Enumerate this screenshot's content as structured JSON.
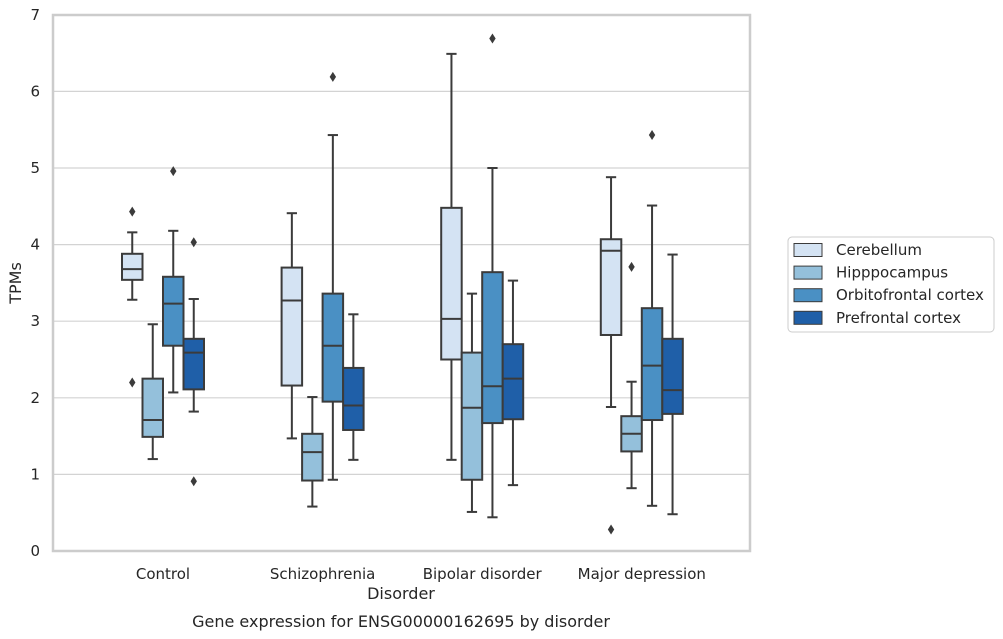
{
  "chart_data": {
    "type": "box",
    "caption": "Gene expression for ENSG00000162695 by disorder",
    "xlabel": "Disorder",
    "ylabel": "TPMs",
    "ylim": [
      0,
      7
    ],
    "yticks": [
      0,
      1,
      2,
      3,
      4,
      5,
      6,
      7
    ],
    "grid": "horizontal",
    "legend_position": "right",
    "categories": [
      "Control",
      "Schizophrenia",
      "Bipolar disorder",
      "Major depression"
    ],
    "series": [
      {
        "name": "Cerebellum",
        "color": "#d4e3f3",
        "boxes": [
          {
            "min": 3.28,
            "q1": 3.54,
            "median": 3.68,
            "q3": 3.88,
            "max": 4.16,
            "outliers": [
              4.43,
              2.2
            ]
          },
          {
            "min": 1.47,
            "q1": 2.16,
            "median": 3.27,
            "q3": 3.7,
            "max": 4.41,
            "outliers": []
          },
          {
            "min": 1.19,
            "q1": 2.5,
            "median": 3.03,
            "q3": 4.48,
            "max": 6.49,
            "outliers": []
          },
          {
            "min": 1.88,
            "q1": 2.82,
            "median": 3.92,
            "q3": 4.07,
            "max": 4.88,
            "outliers": [
              0.28
            ]
          }
        ]
      },
      {
        "name": "Hipppocampus",
        "color": "#94c0db",
        "boxes": [
          {
            "min": 1.2,
            "q1": 1.49,
            "median": 1.71,
            "q3": 2.25,
            "max": 2.96,
            "outliers": []
          },
          {
            "min": 0.58,
            "q1": 0.92,
            "median": 1.29,
            "q3": 1.53,
            "max": 2.01,
            "outliers": []
          },
          {
            "min": 0.51,
            "q1": 0.93,
            "median": 1.87,
            "q3": 2.59,
            "max": 3.36,
            "outliers": []
          },
          {
            "min": 0.82,
            "q1": 1.3,
            "median": 1.53,
            "q3": 1.76,
            "max": 2.21,
            "outliers": [
              3.71
            ]
          }
        ]
      },
      {
        "name": "Orbitofrontal cortex",
        "color": "#4a90c4",
        "boxes": [
          {
            "min": 2.07,
            "q1": 2.68,
            "median": 3.23,
            "q3": 3.58,
            "max": 4.18,
            "outliers": [
              4.96
            ]
          },
          {
            "min": 0.93,
            "q1": 1.95,
            "median": 2.68,
            "q3": 3.36,
            "max": 5.43,
            "outliers": [
              6.19
            ]
          },
          {
            "min": 0.44,
            "q1": 1.67,
            "median": 2.15,
            "q3": 3.64,
            "max": 5.0,
            "outliers": [
              6.69
            ]
          },
          {
            "min": 0.59,
            "q1": 1.71,
            "median": 2.42,
            "q3": 3.17,
            "max": 4.51,
            "outliers": [
              5.43
            ]
          }
        ]
      },
      {
        "name": "Prefrontal cortex",
        "color": "#1f5fa8",
        "boxes": [
          {
            "min": 1.82,
            "q1": 2.11,
            "median": 2.59,
            "q3": 2.77,
            "max": 3.29,
            "outliers": [
              4.03,
              0.91
            ]
          },
          {
            "min": 1.19,
            "q1": 1.58,
            "median": 1.9,
            "q3": 2.39,
            "max": 3.09,
            "outliers": []
          },
          {
            "min": 0.86,
            "q1": 1.72,
            "median": 2.25,
            "q3": 2.7,
            "max": 3.53,
            "outliers": []
          },
          {
            "min": 0.48,
            "q1": 1.79,
            "median": 2.1,
            "q3": 2.77,
            "max": 3.87,
            "outliers": []
          }
        ]
      }
    ]
  }
}
